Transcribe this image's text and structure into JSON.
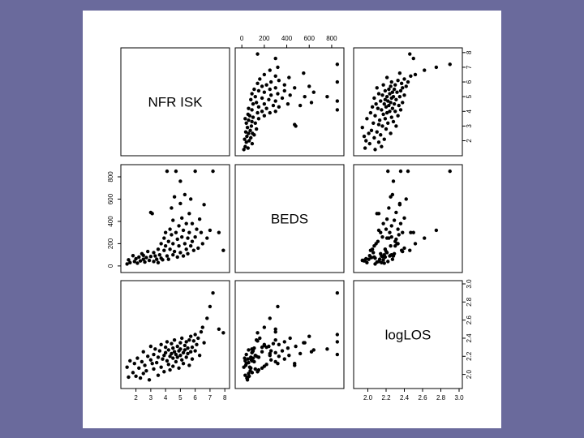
{
  "chart_data": {
    "type": "scatter",
    "variables": [
      "NFRISK",
      "BEDS",
      "logLOS"
    ],
    "diagonal_labels": [
      "NFR ISK",
      "BEDS",
      "logLOS"
    ],
    "ticks": {
      "NFRISK": [
        2,
        3,
        4,
        5,
        6,
        7,
        8
      ],
      "BEDS": [
        0,
        200,
        400,
        600,
        800
      ],
      "logLOS": [
        2.0,
        2.2,
        2.4,
        2.6,
        2.8,
        3.0
      ]
    },
    "tick_labels": {
      "NFRISK": [
        "2",
        "3",
        "4",
        "5",
        "6",
        "7",
        "8"
      ],
      "BEDS_top": [
        "0",
        "200",
        "400",
        "600",
        "800"
      ],
      "BEDS_left": [
        "0",
        "200",
        "400",
        "600",
        "800"
      ],
      "logLOS": [
        "2.0",
        "2.2",
        "2.4",
        "2.6",
        "2.8",
        "3.0"
      ]
    },
    "ranges": {
      "NFRISK": [
        1.2,
        8.1
      ],
      "BEDS": [
        -30,
        880
      ],
      "logLOS": [
        1.88,
        3.0
      ]
    },
    "points": [
      [
        1.4,
        18,
        2.08
      ],
      [
        1.5,
        55,
        1.97
      ],
      [
        1.6,
        30,
        2.15
      ],
      [
        1.8,
        92,
        2.02
      ],
      [
        1.9,
        40,
        2.12
      ],
      [
        2.0,
        65,
        1.98
      ],
      [
        2.1,
        25,
        2.18
      ],
      [
        2.2,
        80,
        2.07
      ],
      [
        2.3,
        45,
        1.96
      ],
      [
        2.4,
        110,
        2.14
      ],
      [
        2.5,
        60,
        2.01
      ],
      [
        2.5,
        95,
        2.25
      ],
      [
        2.6,
        35,
        2.1
      ],
      [
        2.7,
        75,
        2.04
      ],
      [
        2.8,
        130,
        2.2
      ],
      [
        2.9,
        50,
        1.94
      ],
      [
        3.0,
        85,
        2.16
      ],
      [
        3.0,
        480,
        2.31
      ],
      [
        3.1,
        470,
        2.12
      ],
      [
        3.2,
        40,
        2.22
      ],
      [
        3.2,
        120,
        2.06
      ],
      [
        3.3,
        90,
        2.28
      ],
      [
        3.4,
        60,
        2.13
      ],
      [
        3.5,
        150,
        2.19
      ],
      [
        3.5,
        30,
        1.99
      ],
      [
        3.6,
        100,
        2.26
      ],
      [
        3.7,
        70,
        2.08
      ],
      [
        3.7,
        200,
        2.33
      ],
      [
        3.8,
        55,
        2.17
      ],
      [
        3.9,
        250,
        2.21
      ],
      [
        3.9,
        140,
        2.03
      ],
      [
        4.0,
        180,
        2.3
      ],
      [
        4.0,
        300,
        2.24
      ],
      [
        4.1,
        90,
        2.15
      ],
      [
        4.1,
        850,
        2.36
      ],
      [
        4.2,
        220,
        2.11
      ],
      [
        4.2,
        60,
        2.27
      ],
      [
        4.3,
        330,
        2.2
      ],
      [
        4.3,
        150,
        2.05
      ],
      [
        4.4,
        280,
        2.34
      ],
      [
        4.4,
        520,
        2.23
      ],
      [
        4.5,
        100,
        2.18
      ],
      [
        4.5,
        410,
        2.29
      ],
      [
        4.5,
        200,
        2.09
      ],
      [
        4.6,
        620,
        2.25
      ],
      [
        4.6,
        130,
        2.38
      ],
      [
        4.7,
        300,
        2.14
      ],
      [
        4.7,
        850,
        2.22
      ],
      [
        4.8,
        240,
        2.31
      ],
      [
        4.8,
        80,
        2.19
      ],
      [
        4.9,
        360,
        2.26
      ],
      [
        4.9,
        180,
        2.07
      ],
      [
        5.0,
        560,
        2.35
      ],
      [
        5.0,
        120,
        2.21
      ],
      [
        5.0,
        760,
        2.28
      ],
      [
        5.1,
        260,
        2.16
      ],
      [
        5.1,
        430,
        2.4
      ],
      [
        5.2,
        90,
        2.24
      ],
      [
        5.2,
        320,
        2.12
      ],
      [
        5.3,
        200,
        2.32
      ],
      [
        5.3,
        640,
        2.27
      ],
      [
        5.4,
        150,
        2.19
      ],
      [
        5.4,
        380,
        2.36
      ],
      [
        5.5,
        250,
        2.23
      ],
      [
        5.5,
        110,
        2.29
      ],
      [
        5.6,
        470,
        2.1
      ],
      [
        5.6,
        300,
        2.38
      ],
      [
        5.7,
        180,
        2.25
      ],
      [
        5.7,
        600,
        2.42
      ],
      [
        5.8,
        220,
        2.3
      ],
      [
        5.8,
        380,
        2.17
      ],
      [
        5.9,
        140,
        2.37
      ],
      [
        6.0,
        850,
        2.44
      ],
      [
        6.0,
        260,
        2.26
      ],
      [
        6.1,
        330,
        2.33
      ],
      [
        6.2,
        160,
        2.4
      ],
      [
        6.3,
        420,
        2.21
      ],
      [
        6.4,
        300,
        2.47
      ],
      [
        6.5,
        200,
        2.52
      ],
      [
        6.6,
        550,
        2.35
      ],
      [
        6.8,
        250,
        2.62
      ],
      [
        7.0,
        320,
        2.75
      ],
      [
        7.2,
        850,
        2.9
      ],
      [
        7.6,
        300,
        2.5
      ],
      [
        7.9,
        140,
        2.46
      ]
    ]
  }
}
